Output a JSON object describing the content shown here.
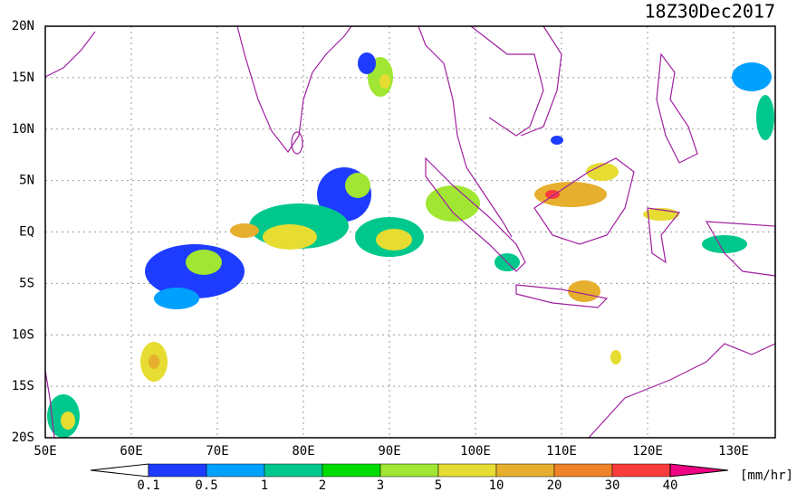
{
  "title": "18Z30Dec2017",
  "lat_labels": [
    "20N",
    "15N",
    "10N",
    "5N",
    "EQ",
    "5S",
    "10S",
    "15S",
    "20S"
  ],
  "lon_labels": [
    "50E",
    "60E",
    "70E",
    "80E",
    "90E",
    "100E",
    "110E",
    "120E",
    "130E"
  ],
  "colorbar": {
    "levels": [
      0.1,
      0.5,
      1,
      2,
      3,
      5,
      10,
      20,
      30,
      40
    ],
    "colors": [
      "#ffffff",
      "#1e3cff",
      "#00a0ff",
      "#00c88c",
      "#00dc00",
      "#a0e632",
      "#e6dc32",
      "#e6af2d",
      "#f08228",
      "#fa3c3c",
      "#f00082"
    ],
    "unit": "[mm/hr]"
  }
}
